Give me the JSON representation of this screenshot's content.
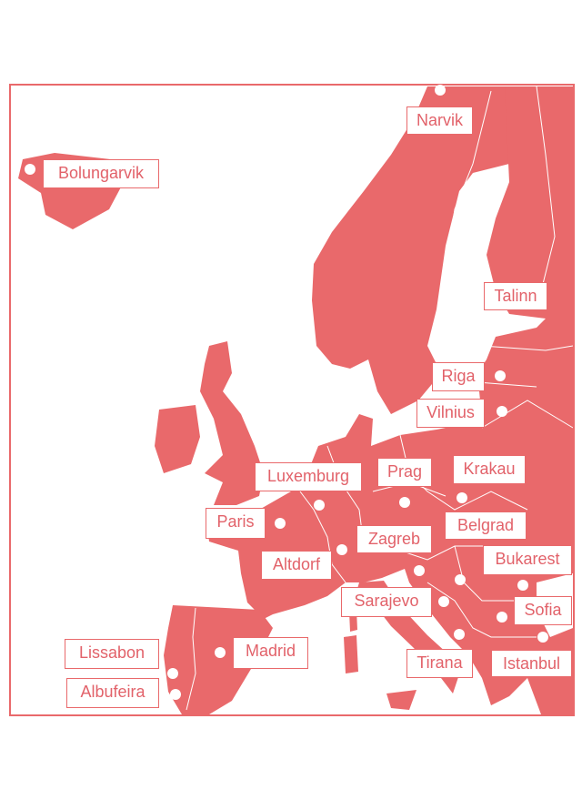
{
  "map": {
    "land_color": "#e9696b",
    "water_color": "#ffffff",
    "border_color": "#ffffff",
    "cities": [
      {
        "name": "Narvik"
      },
      {
        "name": "Bolungarvik"
      },
      {
        "name": "Talinn"
      },
      {
        "name": "Riga"
      },
      {
        "name": "Vilnius"
      },
      {
        "name": "Luxemburg"
      },
      {
        "name": "Prag"
      },
      {
        "name": "Krakau"
      },
      {
        "name": "Paris"
      },
      {
        "name": "Belgrad"
      },
      {
        "name": "Zagreb"
      },
      {
        "name": "Altdorf"
      },
      {
        "name": "Bukarest"
      },
      {
        "name": "Sarajevo"
      },
      {
        "name": "Sofia"
      },
      {
        "name": "Istanbul"
      },
      {
        "name": "Tirana"
      },
      {
        "name": "Madrid"
      },
      {
        "name": "Lissabon"
      },
      {
        "name": "Albufeira"
      }
    ]
  }
}
